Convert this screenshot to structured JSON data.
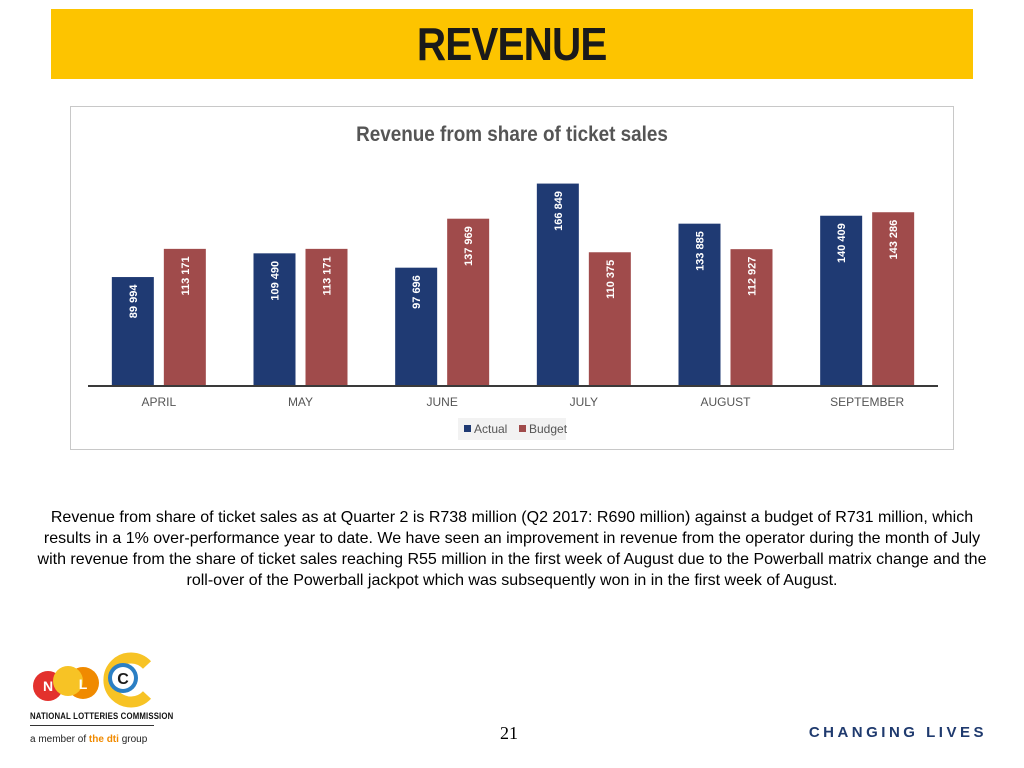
{
  "slide": {
    "title": "REVENUE",
    "description": "Revenue from share of ticket sales as at Quarter 2 is R738 million (Q2 2017: R690 million) against a budget of R731 million, which results in a 1% over-performance year to date. We have seen an improvement in revenue from the operator during the month of July with revenue from the share of ticket sales reaching R55 million in the first week of August due to the Powerball matrix change and the roll-over of the Powerball jackpot which was subsequently won in in the first week of August.",
    "page_number": "21",
    "tagline": "CHANGING LIVES"
  },
  "logo": {
    "letters": [
      "N",
      "L",
      "C"
    ],
    "org_name": "NATIONAL LOTTERIES COMMISSION",
    "member_prefix": "a member of ",
    "member_group": "the dti",
    "member_suffix": " group",
    "colors": {
      "red": "#E3312D",
      "yellow": "#F7C325",
      "orange": "#F08A00",
      "blue": "#2B7FC4",
      "green": "#8DC63F"
    }
  },
  "chart_data": {
    "type": "bar",
    "title": "Revenue from share of ticket sales",
    "categories": [
      "APRIL",
      "MAY",
      "JUNE",
      "JULY",
      "AUGUST",
      "SEPTEMBER"
    ],
    "series": [
      {
        "name": "Actual",
        "values": [
          89994,
          109490,
          97696,
          166849,
          133885,
          140409
        ],
        "labels": [
          "89 994",
          "109 490",
          "97 696",
          "166 849",
          "133 885",
          "140 409"
        ],
        "color": "#1F3A73"
      },
      {
        "name": "Budget",
        "values": [
          113171,
          113171,
          137969,
          110375,
          112927,
          143286
        ],
        "labels": [
          "113 171",
          "113 171",
          "137 969",
          "110 375",
          "112 927",
          "143 286"
        ],
        "color": "#A04B4B"
      }
    ],
    "ylim": [
      0,
      185000
    ],
    "grid": false,
    "legend_position": "bottom"
  }
}
